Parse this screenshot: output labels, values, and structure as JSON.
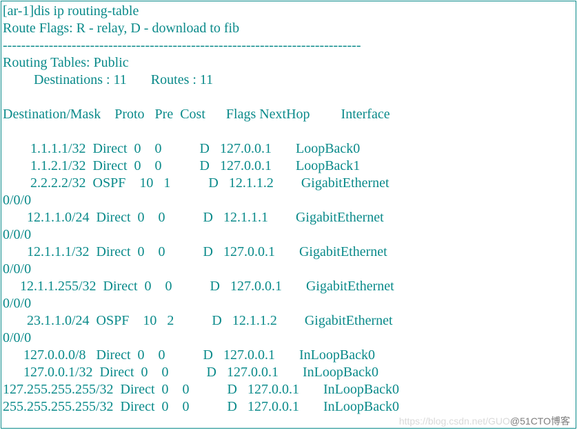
{
  "prompt_line": "[ar-1]dis ip routing-table",
  "flags_line": "Route Flags: R - relay, D - download to fib",
  "sep_line": "------------------------------------------------------------------------------",
  "tables_line": "Routing Tables: Public",
  "dest_routes_line": "         Destinations : 11       Routes : 11",
  "header_line": "Destination/Mask    Proto   Pre  Cost      Flags NextHop         Interface",
  "rows": [
    "        1.1.1.1/32  Direct  0    0           D   127.0.0.1       LoopBack0",
    "        1.1.2.1/32  Direct  0    0           D   127.0.0.1       LoopBack1",
    "        2.2.2.2/32  OSPF    10   1           D   12.1.1.2        GigabitEthernet",
    "0/0/0",
    "       12.1.1.0/24  Direct  0    0           D   12.1.1.1        GigabitEthernet",
    "0/0/0",
    "       12.1.1.1/32  Direct  0    0           D   127.0.0.1       GigabitEthernet",
    "0/0/0",
    "     12.1.1.255/32  Direct  0    0           D   127.0.0.1       GigabitEthernet",
    "0/0/0",
    "       23.1.1.0/24  OSPF    10   2           D   12.1.1.2        GigabitEthernet",
    "0/0/0",
    "      127.0.0.0/8   Direct  0    0           D   127.0.0.1       InLoopBack0",
    "      127.0.0.1/32  Direct  0    0           D   127.0.0.1       InLoopBack0",
    "127.255.255.255/32  Direct  0    0           D   127.0.0.1       InLoopBack0",
    "255.255.255.255/32  Direct  0    0           D   127.0.0.1       InLoopBack0"
  ],
  "watermark_faint": "https://blog.csdn.net/GUO",
  "watermark_dark": "@51CTO博客"
}
